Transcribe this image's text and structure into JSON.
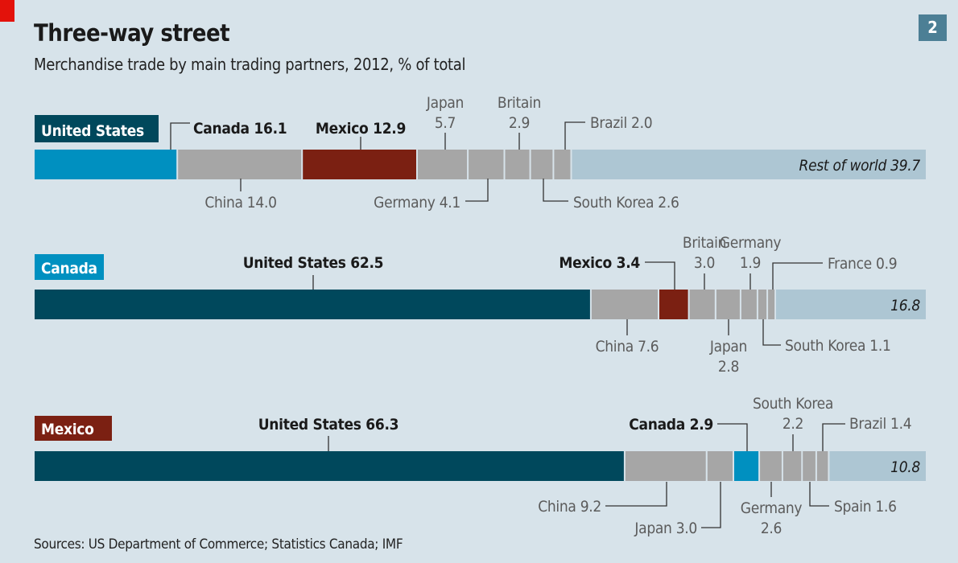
{
  "header": {
    "title": "Three-way street",
    "subtitle": "Merchandise trade by main trading partners, 2012, % of total",
    "chart_number": "2"
  },
  "footer": {
    "source": "Sources: US Department of Commerce; Statistics Canada; IMF"
  },
  "colors": {
    "background": "#d7e3ea",
    "united_states": "#00485c",
    "canada": "#0090c0",
    "mexico": "#7b2012",
    "other_partner": "#a6a6a6",
    "rest_of_world": "#adc6d3",
    "accent_flag": "#e3120b"
  },
  "chart_data": [
    {
      "type": "bar",
      "stacked": true,
      "orientation": "horizontal",
      "country": "United States",
      "country_color": "#00485c",
      "segments": [
        {
          "name": "Canada",
          "value": 16.1,
          "color": "#0090c0",
          "bold": true
        },
        {
          "name": "China",
          "value": 14.0,
          "color": "#a6a6a6"
        },
        {
          "name": "Mexico",
          "value": 12.9,
          "color": "#7b2012",
          "bold": true
        },
        {
          "name": "Japan",
          "value": 5.7,
          "color": "#a6a6a6"
        },
        {
          "name": "Germany",
          "value": 4.1,
          "color": "#a6a6a6"
        },
        {
          "name": "Britain",
          "value": 2.9,
          "color": "#a6a6a6"
        },
        {
          "name": "South Korea",
          "value": 2.6,
          "color": "#a6a6a6"
        },
        {
          "name": "Brazil",
          "value": 2.0,
          "color": "#a6a6a6"
        },
        {
          "name": "Rest of world",
          "value": 39.7,
          "color": "#adc6d3",
          "rest": true,
          "show_name": true
        }
      ]
    },
    {
      "type": "bar",
      "stacked": true,
      "orientation": "horizontal",
      "country": "Canada",
      "country_color": "#0090c0",
      "segments": [
        {
          "name": "United States",
          "value": 62.5,
          "color": "#00485c",
          "bold": true
        },
        {
          "name": "China",
          "value": 7.6,
          "color": "#a6a6a6"
        },
        {
          "name": "Mexico",
          "value": 3.4,
          "color": "#7b2012",
          "bold": true
        },
        {
          "name": "Britain",
          "value": 3.0,
          "color": "#a6a6a6"
        },
        {
          "name": "Japan",
          "value": 2.8,
          "color": "#a6a6a6"
        },
        {
          "name": "Germany",
          "value": 1.9,
          "color": "#a6a6a6"
        },
        {
          "name": "South Korea",
          "value": 1.1,
          "color": "#a6a6a6"
        },
        {
          "name": "France",
          "value": 0.9,
          "color": "#a6a6a6"
        },
        {
          "name": "Rest of world",
          "value": 16.8,
          "color": "#adc6d3",
          "rest": true,
          "show_name": false
        }
      ]
    },
    {
      "type": "bar",
      "stacked": true,
      "orientation": "horizontal",
      "country": "Mexico",
      "country_color": "#7b2012",
      "segments": [
        {
          "name": "United States",
          "value": 66.3,
          "color": "#00485c",
          "bold": true
        },
        {
          "name": "China",
          "value": 9.2,
          "color": "#a6a6a6"
        },
        {
          "name": "Japan",
          "value": 3.0,
          "color": "#a6a6a6"
        },
        {
          "name": "Canada",
          "value": 2.9,
          "color": "#0090c0",
          "bold": true
        },
        {
          "name": "Germany",
          "value": 2.6,
          "color": "#a6a6a6"
        },
        {
          "name": "South Korea",
          "value": 2.2,
          "color": "#a6a6a6"
        },
        {
          "name": "Spain",
          "value": 1.6,
          "color": "#a6a6a6"
        },
        {
          "name": "Brazil",
          "value": 1.4,
          "color": "#a6a6a6"
        },
        {
          "name": "Rest of world",
          "value": 10.8,
          "color": "#adc6d3",
          "rest": true,
          "show_name": false
        }
      ]
    }
  ]
}
